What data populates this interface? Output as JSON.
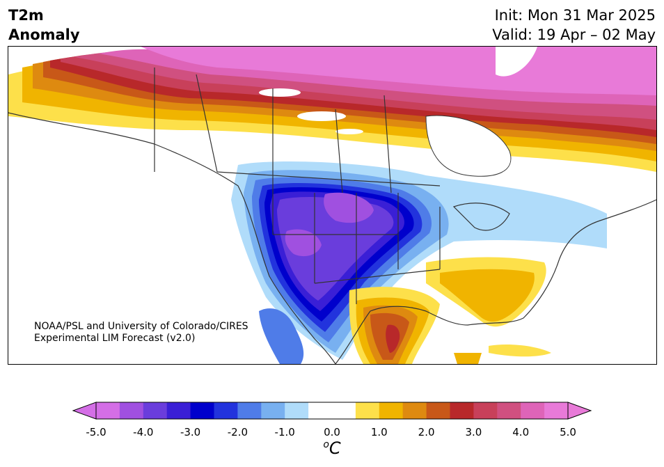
{
  "header": {
    "title_line1": "T2m",
    "title_line2": "Anomaly",
    "init": "Init: Mon 31 Mar 2025",
    "valid": "Valid: 19 Apr – 02 May"
  },
  "credit": {
    "line1": "NOAA/PSL and University of Colorado/CIRES",
    "line2": "Experimental LIM Forecast (v2.0)"
  },
  "colorbar": {
    "unit_base": "C",
    "unit_sup": "o",
    "ticks": [
      "-5.0",
      "-4.0",
      "-3.0",
      "-2.0",
      "-1.0",
      "0.0",
      "1.0",
      "2.0",
      "3.0",
      "4.0",
      "5.0"
    ],
    "colors": [
      "#d46ee6",
      "#a050e0",
      "#6a3ddc",
      "#3a1fd6",
      "#0000cc",
      "#2233dd",
      "#4f7ce8",
      "#78b0f0",
      "#b0dcfa",
      "#ffffff",
      "#ffffff",
      "#fde04a",
      "#f0b400",
      "#de8a10",
      "#c85818",
      "#b8282a",
      "#c8405a",
      "#d05080",
      "#de64b8",
      "#e87ad8"
    ],
    "under_color": "#d46ee6",
    "over_color": "#e87ad8"
  },
  "map_regions": [
    "arctic-warm-anomaly",
    "western-canada-gradient",
    "western-us-cold-core",
    "great-plains-cold",
    "northeast-cool",
    "southeast-warm",
    "texas-mexico-warm"
  ]
}
